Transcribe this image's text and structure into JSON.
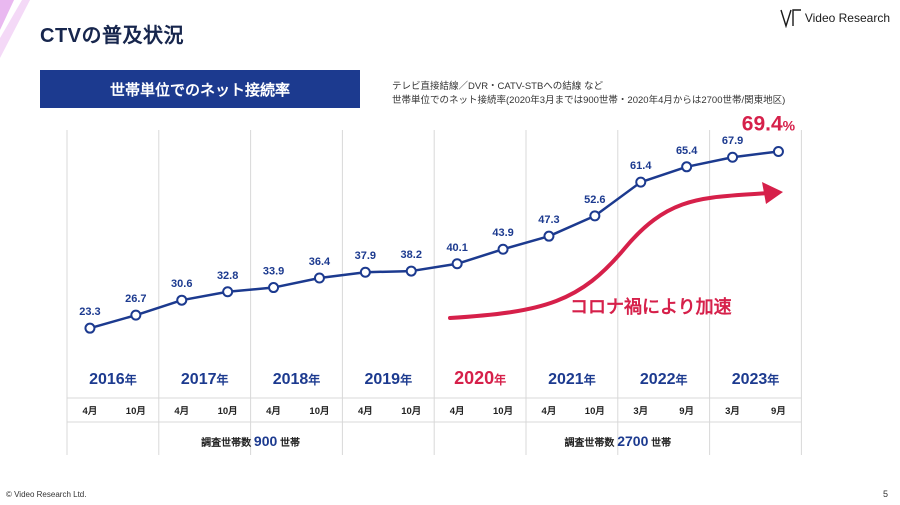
{
  "slide": {
    "title": "CTVの普及状況",
    "logo_text": "Video Research",
    "banner": "世帯単位でのネット接続率",
    "note_line1": "テレビ直接結線／DVR・CATV-STBへの結線 など",
    "note_line2": "世帯単位でのネット接続率(2020年3月までは900世帯・2020年4月からは2700世帯/関東地区)",
    "footer_copyright": "© Video Research Ltd.",
    "page_number": "5"
  },
  "colors": {
    "navy": "#1c3a8f",
    "title": "#17264d",
    "accent_red": "#d6204a",
    "grid": "#d8d8d8"
  },
  "chart_data": {
    "type": "line",
    "categories": [
      "4月",
      "10月",
      "4月",
      "10月",
      "4月",
      "10月",
      "4月",
      "10月",
      "4月",
      "10月",
      "4月",
      "10月",
      "3月",
      "9月",
      "3月",
      "9月"
    ],
    "years": [
      {
        "label": "2016年",
        "highlight": false
      },
      {
        "label": "2017年",
        "highlight": false
      },
      {
        "label": "2018年",
        "highlight": false
      },
      {
        "label": "2019年",
        "highlight": false
      },
      {
        "label": "2020年",
        "highlight": true
      },
      {
        "label": "2021年",
        "highlight": false
      },
      {
        "label": "2022年",
        "highlight": false
      },
      {
        "label": "2023年",
        "highlight": false
      }
    ],
    "series": [
      {
        "values": [
          23.3,
          26.7,
          30.6,
          32.8,
          33.9,
          36.4,
          37.9,
          38.2,
          40.1,
          43.9,
          47.3,
          52.6,
          61.4,
          65.4,
          67.9,
          69.4
        ]
      }
    ],
    "data_labels": [
      "23.3",
      "26.7",
      "30.6",
      "32.8",
      "33.9",
      "36.4",
      "37.9",
      "38.2",
      "40.1",
      "43.9",
      "47.3",
      "52.6",
      "61.4",
      "65.4",
      "67.9"
    ],
    "last_label_value": "69.4",
    "last_label_unit": "%",
    "ylim": [
      15,
      75
    ],
    "annotation": "コロナ禍により加速",
    "sample_sizes": [
      {
        "prefix": "調査世帯数 ",
        "number": "900",
        "suffix": " 世帯"
      },
      {
        "prefix": "調査世帯数 ",
        "number": "2700",
        "suffix": " 世帯"
      }
    ]
  }
}
